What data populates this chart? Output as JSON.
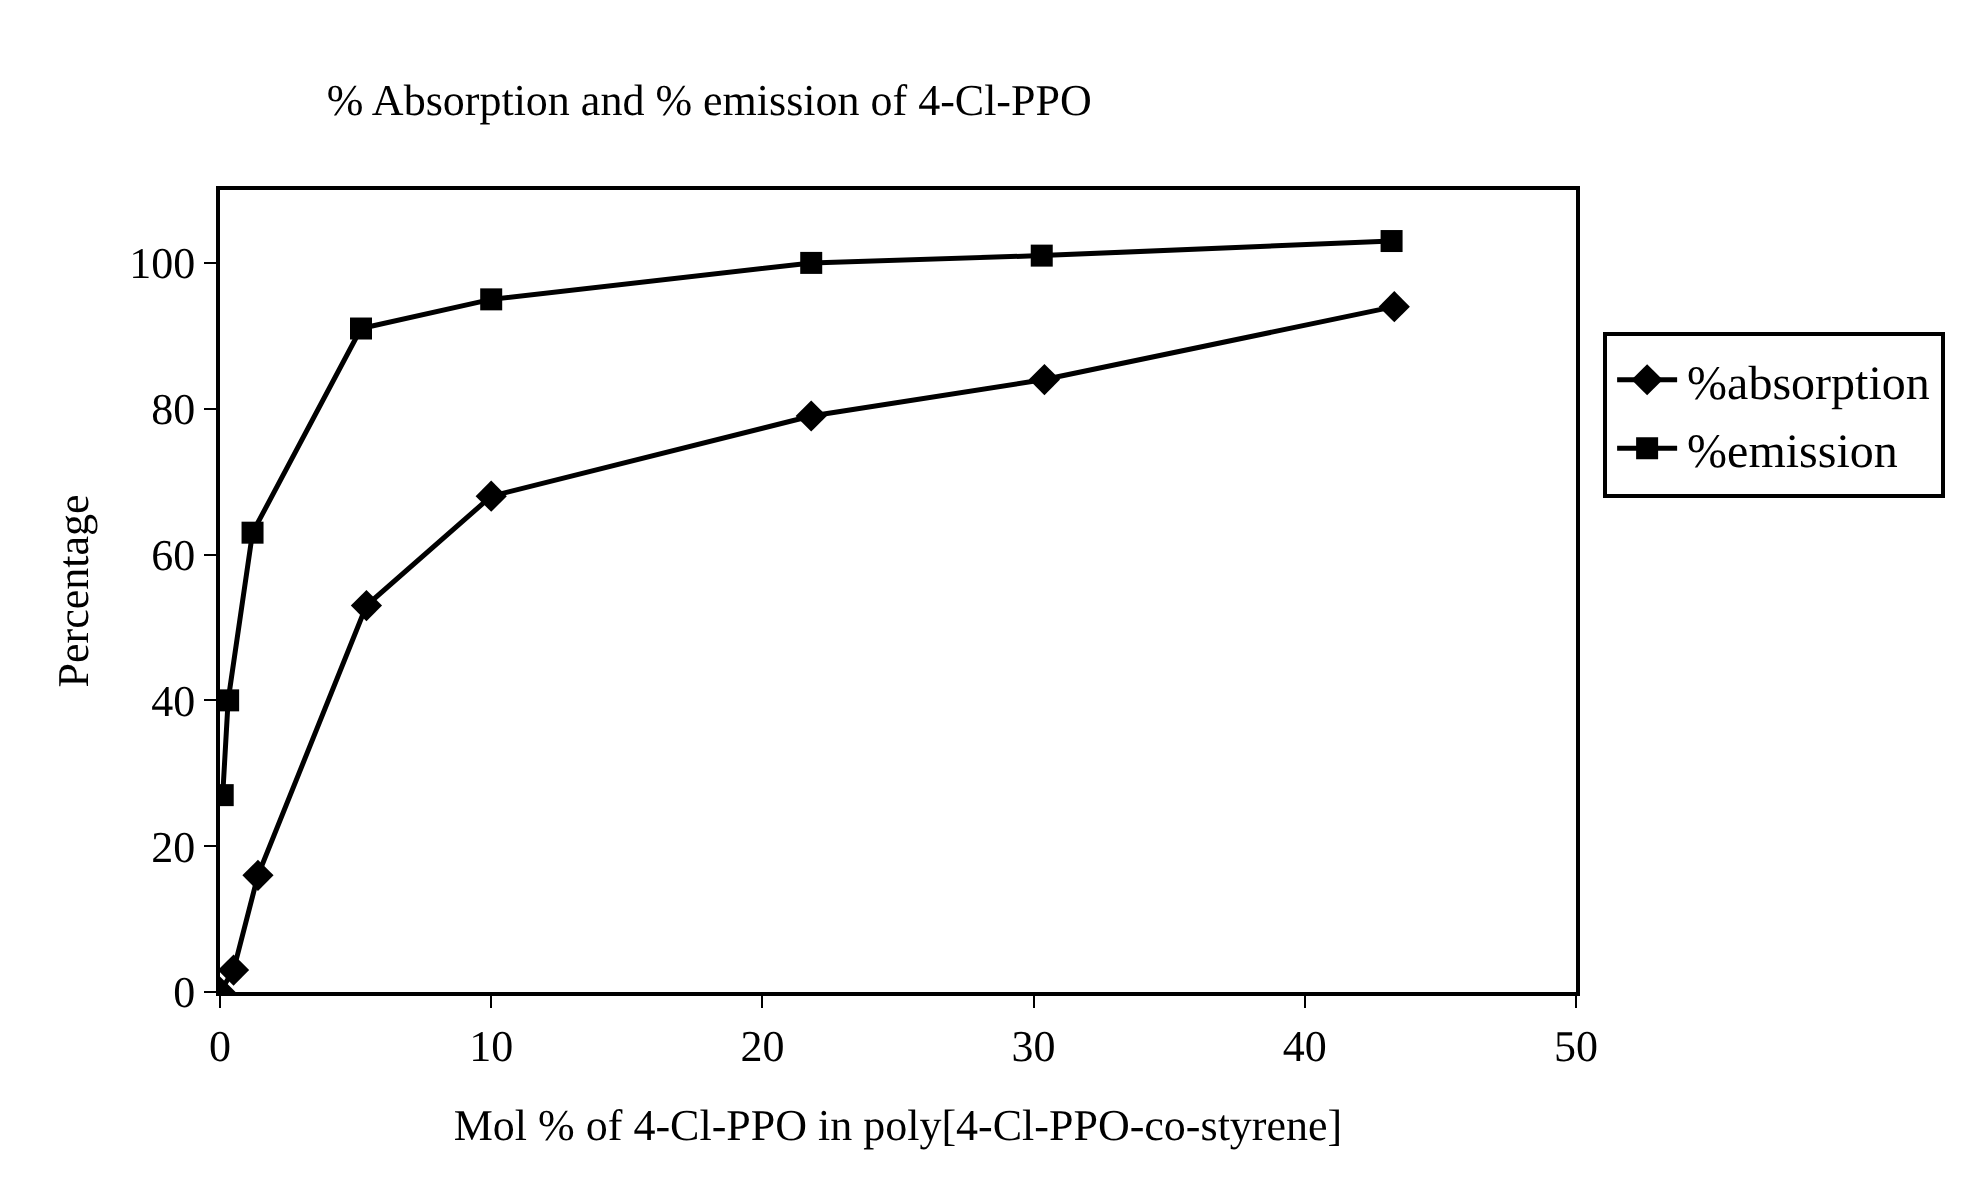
{
  "chart_data": {
    "type": "line",
    "title": "% Absorption and % emission of 4-Cl-PPO",
    "xlabel": "Mol % of 4-Cl-PPO in poly[4-Cl-PPO-co-styrene]",
    "ylabel": "Percentage",
    "series": [
      {
        "name": "%absorption",
        "color": "#000000",
        "marker": "diamond",
        "x": [
          0,
          0.5,
          1.4,
          5.4,
          10,
          21.8,
          30.4,
          43.3
        ],
        "values": [
          0,
          3,
          16,
          53,
          68,
          79,
          84,
          94
        ]
      },
      {
        "name": "%emission",
        "color": "#000000",
        "marker": "square",
        "x": [
          0.1,
          0.3,
          1.2,
          5.2,
          10,
          21.8,
          30.3,
          43.2
        ],
        "values": [
          27,
          40,
          63,
          91,
          95,
          100,
          101,
          103
        ]
      }
    ],
    "xlim": [
      0,
      50
    ],
    "xticks": [
      0,
      10,
      20,
      30,
      40,
      50
    ],
    "ylim": [
      0,
      110
    ],
    "yticks": [
      0,
      20,
      40,
      60,
      80,
      100
    ],
    "legend": "right",
    "line_style": "solid"
  }
}
